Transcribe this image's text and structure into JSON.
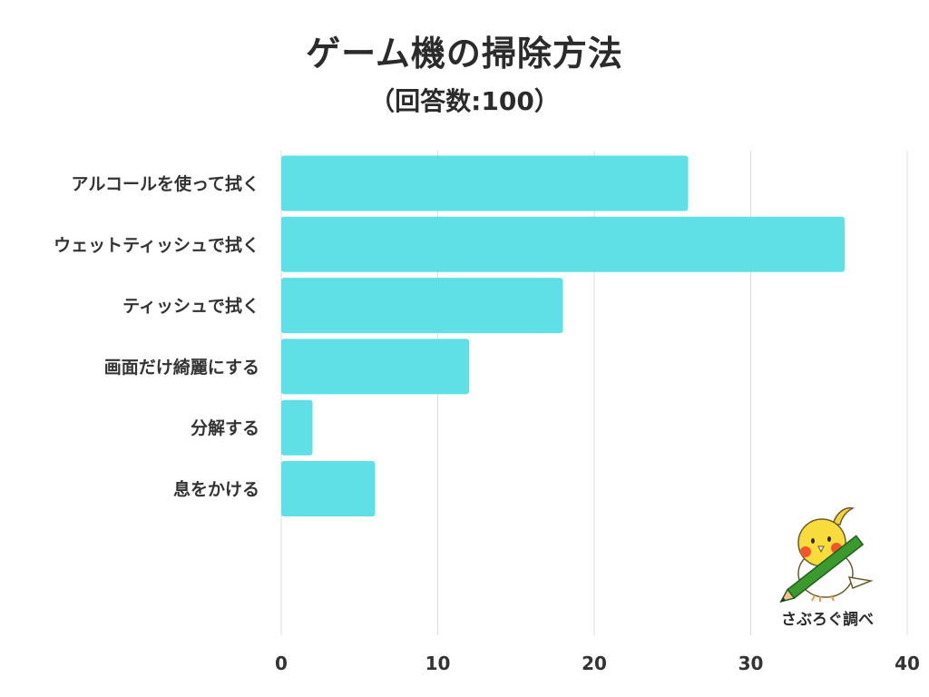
{
  "chart_data": {
    "type": "bar",
    "orientation": "horizontal",
    "title": "ゲーム機の掃除方法",
    "subtitle": "（回答数:100）",
    "categories": [
      "アルコールを使って拭く",
      "ウェットティッシュで拭く",
      "ティッシュで拭く",
      "画面だけ綺麗にする",
      "分解する",
      "息をかける"
    ],
    "values": [
      26,
      36,
      18,
      12,
      2,
      6
    ],
    "xlim": [
      0,
      40
    ],
    "xticks": [
      "0",
      "10",
      "20",
      "30",
      "40"
    ],
    "grid": true,
    "bar_color": "#5ee0e6"
  },
  "credit": "さぶろぐ調べ",
  "mascot_icon": "cockatiel-with-pencil"
}
